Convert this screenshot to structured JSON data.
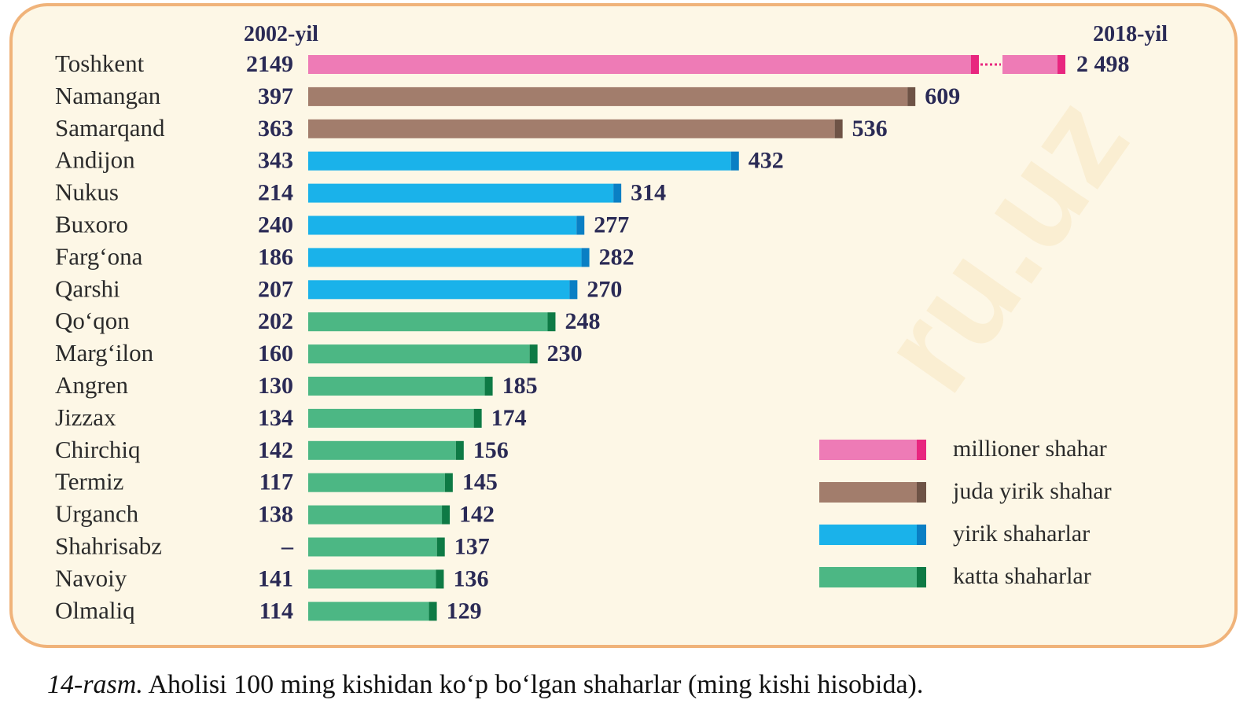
{
  "chart_data": {
    "type": "bar",
    "orientation": "horizontal",
    "series_header_left": "2002-yil",
    "series_header_right": "2018-yil",
    "categories": [
      "Toshkent",
      "Namangan",
      "Samarqand",
      "Andijon",
      "Nukus",
      "Buxoro",
      "Farg‘ona",
      "Qarshi",
      "Qo‘qon",
      "Marg‘ilon",
      "Angren",
      "Jizzax",
      "Chirchiq",
      "Termiz",
      "Urganch",
      "Shahrisabz",
      "Navoiy",
      "Olmaliq"
    ],
    "values_2002": [
      2149,
      397,
      363,
      343,
      214,
      240,
      186,
      207,
      202,
      160,
      130,
      134,
      142,
      117,
      138,
      null,
      141,
      114
    ],
    "labels_2002": [
      "2149",
      "397",
      "363",
      "343",
      "214",
      "240",
      "186",
      "207",
      "202",
      "160",
      "130",
      "134",
      "142",
      "117",
      "138",
      "–",
      "141",
      "114"
    ],
    "values_2018": [
      2498,
      609,
      536,
      432,
      314,
      277,
      282,
      270,
      248,
      230,
      185,
      174,
      156,
      145,
      142,
      137,
      136,
      129
    ],
    "labels_2018": [
      "2 498",
      "609",
      "536",
      "432",
      "314",
      "277",
      "282",
      "270",
      "248",
      "230",
      "185",
      "174",
      "156",
      "145",
      "142",
      "137",
      "136",
      "129"
    ],
    "city_class": [
      "millioner",
      "juda",
      "juda",
      "yirik",
      "yirik",
      "yirik",
      "yirik",
      "yirik",
      "katta",
      "katta",
      "katta",
      "katta",
      "katta",
      "katta",
      "katta",
      "katta",
      "katta",
      "katta"
    ],
    "colors": {
      "millioner": "#ee7bb6",
      "juda": "#a27d6c",
      "yirik": "#1ab2ea",
      "katta": "#4cb784"
    },
    "end_colors": {
      "millioner": "#e8267f",
      "juda": "#6e5346",
      "yirik": "#0a7fc4",
      "katta": "#0e7a45"
    },
    "broken_axis": {
      "category": "Toshkent",
      "break_marker": "dotted"
    },
    "legend": [
      {
        "key": "millioner",
        "label": "millioner shahar"
      },
      {
        "key": "juda",
        "label": "juda yirik shahar"
      },
      {
        "key": "yirik",
        "label": "yirik shaharlar"
      },
      {
        "key": "katta",
        "label": "katta shaharlar"
      }
    ],
    "legend_position": "bottom-right",
    "grid": false
  },
  "caption": {
    "number": "14-rasm.",
    "text": " Aholisi 100 ming  kishidan ko‘p bo‘lgan shaharlar (ming kishi hisobida)."
  },
  "watermark": "ru.uz"
}
